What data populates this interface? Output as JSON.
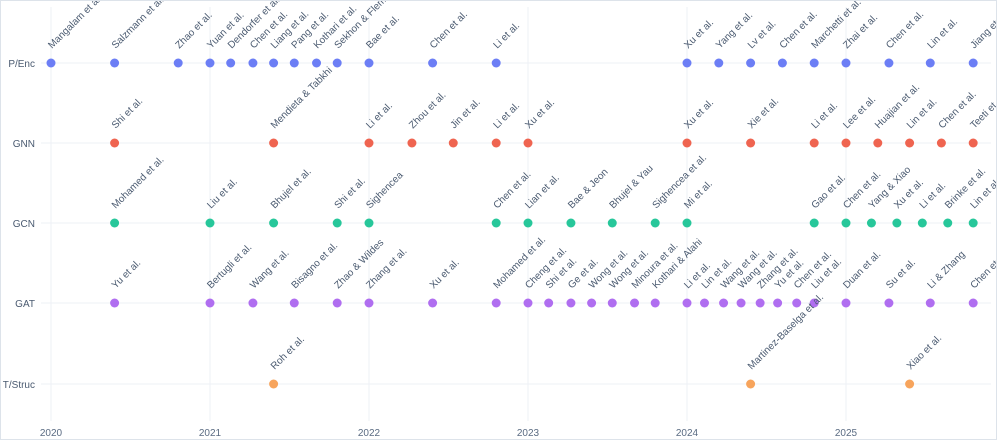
{
  "chart_data": {
    "type": "scatter",
    "title": "",
    "xlabel": "",
    "ylabel": "",
    "xlim": [
      2019.94,
      2025.82
    ],
    "x_ticks": [
      {
        "value": 2020.0,
        "label": "2020"
      },
      {
        "value": 2021.0,
        "label": "2021"
      },
      {
        "value": 2022.0,
        "label": "2022"
      },
      {
        "value": 2023.0,
        "label": "2023"
      },
      {
        "value": 2024.0,
        "label": "2024"
      },
      {
        "value": 2025.0,
        "label": "2025"
      }
    ],
    "categories": [
      "P/Enc",
      "GNN",
      "GCN",
      "GAT",
      "T/Struc"
    ],
    "grid": true,
    "legend": "none",
    "series": [
      {
        "name": "P/Enc",
        "color": "#6c7ef5",
        "points": [
          {
            "x": 2020.0,
            "label": "Mangalam et al."
          },
          {
            "x": 2020.4,
            "label": "Salzmann et al."
          },
          {
            "x": 2020.8,
            "label": "Zhao et al."
          },
          {
            "x": 2021.0,
            "label": "Yuan et al."
          },
          {
            "x": 2021.13,
            "label": "Dendorfer et al."
          },
          {
            "x": 2021.27,
            "label": "Chen et al."
          },
          {
            "x": 2021.4,
            "label": "Liang et al."
          },
          {
            "x": 2021.53,
            "label": "Pang et al."
          },
          {
            "x": 2021.67,
            "label": "Kothari et al."
          },
          {
            "x": 2021.8,
            "label": "Sekhon & Fleming"
          },
          {
            "x": 2022.0,
            "label": "Bae et al."
          },
          {
            "x": 2022.4,
            "label": "Chen et al."
          },
          {
            "x": 2022.8,
            "label": "Li et al."
          },
          {
            "x": 2024.0,
            "label": "Xu et al."
          },
          {
            "x": 2024.2,
            "label": "Yang et al."
          },
          {
            "x": 2024.4,
            "label": "Lv et al."
          },
          {
            "x": 2024.6,
            "label": "Chen et al."
          },
          {
            "x": 2024.8,
            "label": "Marchetti et al."
          },
          {
            "x": 2025.0,
            "label": "Zhai et al."
          },
          {
            "x": 2025.27,
            "label": "Chen et al."
          },
          {
            "x": 2025.53,
            "label": "Lin et al."
          },
          {
            "x": 2025.8,
            "label": "Jiang et al."
          }
        ]
      },
      {
        "name": "GNN",
        "color": "#ef6450",
        "points": [
          {
            "x": 2020.4,
            "label": "Shi et al."
          },
          {
            "x": 2021.4,
            "label": "Mendieta & Tabkhi"
          },
          {
            "x": 2022.0,
            "label": "Li et al."
          },
          {
            "x": 2022.27,
            "label": "Zhou et al."
          },
          {
            "x": 2022.53,
            "label": "Jin et al."
          },
          {
            "x": 2022.8,
            "label": "Li et al."
          },
          {
            "x": 2023.0,
            "label": "Xu et al."
          },
          {
            "x": 2024.0,
            "label": "Xu et al."
          },
          {
            "x": 2024.4,
            "label": "Xie et al."
          },
          {
            "x": 2024.8,
            "label": "Li et al."
          },
          {
            "x": 2025.0,
            "label": "Lee et al."
          },
          {
            "x": 2025.2,
            "label": "Huajian et al."
          },
          {
            "x": 2025.4,
            "label": "Lin et al."
          },
          {
            "x": 2025.6,
            "label": "Chen et al."
          },
          {
            "x": 2025.8,
            "label": "Teeti et al."
          }
        ]
      },
      {
        "name": "GCN",
        "color": "#27c79a",
        "points": [
          {
            "x": 2020.4,
            "label": "Mohamed et al."
          },
          {
            "x": 2021.0,
            "label": "Liu et al."
          },
          {
            "x": 2021.4,
            "label": "Bhujel et al."
          },
          {
            "x": 2021.8,
            "label": "Shi et al."
          },
          {
            "x": 2022.0,
            "label": "Sighencea"
          },
          {
            "x": 2022.8,
            "label": "Chen et al."
          },
          {
            "x": 2023.0,
            "label": "Lian et al."
          },
          {
            "x": 2023.27,
            "label": "Bae & Jeon"
          },
          {
            "x": 2023.53,
            "label": "Bhujel & Yau"
          },
          {
            "x": 2023.8,
            "label": "Sighencea et al."
          },
          {
            "x": 2024.0,
            "label": "Mi et al."
          },
          {
            "x": 2024.8,
            "label": "Gao et al."
          },
          {
            "x": 2025.0,
            "label": "Chen et al."
          },
          {
            "x": 2025.16,
            "label": "Yang & Xiao"
          },
          {
            "x": 2025.32,
            "label": "Xu et al."
          },
          {
            "x": 2025.48,
            "label": "Li et al."
          },
          {
            "x": 2025.64,
            "label": "Brinke et al."
          },
          {
            "x": 2025.8,
            "label": "Lin et al."
          }
        ]
      },
      {
        "name": "GAT",
        "color": "#b06ef0",
        "points": [
          {
            "x": 2020.4,
            "label": "Yu et al."
          },
          {
            "x": 2021.0,
            "label": "Bertugli et al."
          },
          {
            "x": 2021.27,
            "label": "Wang et al."
          },
          {
            "x": 2021.53,
            "label": "Bisagno et al."
          },
          {
            "x": 2021.8,
            "label": "Zhao & Wildes"
          },
          {
            "x": 2022.0,
            "label": "Zhang et al."
          },
          {
            "x": 2022.4,
            "label": "Xu et al."
          },
          {
            "x": 2022.8,
            "label": "Mohamed et al."
          },
          {
            "x": 2023.0,
            "label": "Cheng et al."
          },
          {
            "x": 2023.13,
            "label": "Shi et al."
          },
          {
            "x": 2023.27,
            "label": "Ge et al."
          },
          {
            "x": 2023.4,
            "label": "Wong et al."
          },
          {
            "x": 2023.53,
            "label": "Wong et al."
          },
          {
            "x": 2023.67,
            "label": "Minoura et al."
          },
          {
            "x": 2023.8,
            "label": "Kothari & Alahi"
          },
          {
            "x": 2024.0,
            "label": "Li et al."
          },
          {
            "x": 2024.11,
            "label": "Lin et al."
          },
          {
            "x": 2024.23,
            "label": "Wang et al."
          },
          {
            "x": 2024.34,
            "label": "Wang et al."
          },
          {
            "x": 2024.46,
            "label": "Zhang et al."
          },
          {
            "x": 2024.57,
            "label": "Yu et al."
          },
          {
            "x": 2024.69,
            "label": "Chen et al."
          },
          {
            "x": 2024.8,
            "label": "Liu et al."
          },
          {
            "x": 2025.0,
            "label": "Duan et al."
          },
          {
            "x": 2025.27,
            "label": "Su et al."
          },
          {
            "x": 2025.53,
            "label": "Li & Zhang"
          },
          {
            "x": 2025.8,
            "label": "Chen et al."
          }
        ]
      },
      {
        "name": "T/Struc",
        "color": "#f7a45c",
        "points": [
          {
            "x": 2021.4,
            "label": "Roh et al."
          },
          {
            "x": 2024.4,
            "label": "Martinez-Baselga et al."
          },
          {
            "x": 2025.4,
            "label": "Xiao et al."
          }
        ]
      }
    ]
  }
}
